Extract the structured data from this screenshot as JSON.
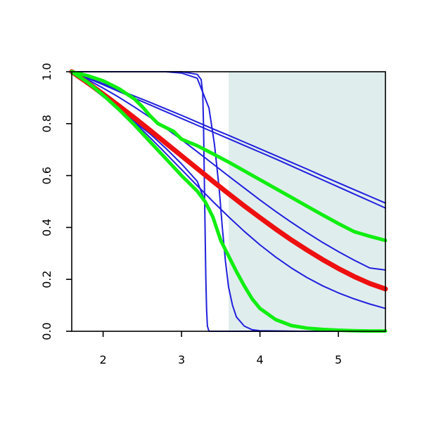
{
  "chart_data": {
    "type": "line",
    "title": "",
    "xlabel": "",
    "ylabel": "",
    "xlim": [
      1.6,
      5.6
    ],
    "ylim": [
      0,
      1
    ],
    "x_ticks": [
      {
        "value": 2,
        "label": "2"
      },
      {
        "value": 3,
        "label": "3"
      },
      {
        "value": 4,
        "label": "4"
      },
      {
        "value": 5,
        "label": "5"
      }
    ],
    "y_ticks": [
      {
        "value": 0.0,
        "label": "0.0"
      },
      {
        "value": 0.2,
        "label": "0.2"
      },
      {
        "value": 0.4,
        "label": "0.4"
      },
      {
        "value": 0.6,
        "label": "0.6"
      },
      {
        "value": 0.8,
        "label": "0.8"
      },
      {
        "value": 1.0,
        "label": "1.0"
      }
    ],
    "shaded_region": {
      "x_from": 3.6,
      "x_to": 5.6,
      "color": "#e0eded"
    },
    "grid": false,
    "series": [
      {
        "color": "#2020dd",
        "width": 2,
        "x": [
          1.6,
          1.8,
          2.0,
          2.2,
          2.4,
          2.6,
          2.8,
          3.0,
          3.2,
          3.4,
          3.6,
          3.8,
          4.0,
          4.2,
          4.4,
          4.6,
          4.8,
          5.0,
          5.2,
          5.4,
          5.6
        ],
        "y": [
          1.0,
          0.975,
          0.95,
          0.924,
          0.898,
          0.872,
          0.846,
          0.82,
          0.794,
          0.768,
          0.742,
          0.716,
          0.69,
          0.664,
          0.637,
          0.61,
          0.583,
          0.556,
          0.529,
          0.502,
          0.475
        ]
      },
      {
        "color": "#2020dd",
        "width": 2,
        "x": [
          1.6,
          1.8,
          2.0,
          2.2,
          2.4,
          2.6,
          2.8,
          3.0,
          3.2,
          3.4,
          3.6,
          3.8,
          4.0,
          4.2,
          4.4,
          4.6,
          4.8,
          5.0,
          5.2,
          5.4,
          5.6
        ],
        "y": [
          1.0,
          0.977,
          0.954,
          0.93,
          0.906,
          0.882,
          0.857,
          0.832,
          0.806,
          0.78,
          0.755,
          0.729,
          0.703,
          0.677,
          0.651,
          0.625,
          0.598,
          0.572,
          0.546,
          0.52,
          0.494
        ]
      },
      {
        "color": "#2020dd",
        "width": 2,
        "x": [
          1.6,
          1.8,
          2.0,
          2.2,
          2.4,
          2.6,
          2.8,
          3.0,
          3.2,
          3.4,
          3.6,
          3.8,
          4.0,
          4.2,
          4.4,
          4.6,
          4.8,
          5.0,
          5.2,
          5.4,
          5.6
        ],
        "y": [
          1.0,
          0.97,
          0.937,
          0.902,
          0.864,
          0.824,
          0.782,
          0.738,
          0.692,
          0.645,
          0.598,
          0.552,
          0.506,
          0.462,
          0.42,
          0.38,
          0.342,
          0.307,
          0.274,
          0.244,
          0.236
        ]
      },
      {
        "color": "#2020dd",
        "width": 2,
        "x": [
          1.6,
          1.8,
          2.0,
          2.2,
          2.4,
          2.6,
          2.8,
          3.0,
          3.2,
          3.4,
          3.6,
          3.8,
          4.0,
          4.2,
          4.4,
          4.6,
          4.8,
          5.0,
          5.2,
          5.4,
          5.6
        ],
        "y": [
          1.0,
          0.96,
          0.912,
          0.86,
          0.805,
          0.746,
          0.685,
          0.623,
          0.561,
          0.5,
          0.441,
          0.385,
          0.333,
          0.286,
          0.244,
          0.207,
          0.175,
          0.148,
          0.125,
          0.105,
          0.088
        ]
      },
      {
        "color": "#2020dd",
        "width": 2,
        "x": [
          1.6,
          1.8,
          2.0,
          2.2,
          2.4,
          2.6,
          2.8,
          3.0,
          3.2,
          3.35,
          3.42,
          3.48,
          3.52,
          3.56,
          3.6,
          3.65,
          3.7,
          3.8,
          3.9,
          4.0,
          4.5,
          5.0,
          5.6
        ],
        "y": [
          1.0,
          1.0,
          1.0,
          1.0,
          1.0,
          1.0,
          1.0,
          0.995,
          0.975,
          0.86,
          0.72,
          0.55,
          0.4,
          0.27,
          0.17,
          0.1,
          0.055,
          0.02,
          0.006,
          0.002,
          0.0,
          0.0,
          0.0
        ]
      },
      {
        "color": "#2020dd",
        "width": 2,
        "x": [
          1.6,
          2.0,
          2.5,
          3.0,
          3.2,
          3.25,
          3.27,
          3.28,
          3.29,
          3.3,
          3.31,
          3.32,
          3.33,
          3.35,
          3.4,
          4.0,
          5.0,
          5.6
        ],
        "y": [
          1.0,
          1.0,
          1.0,
          1.0,
          0.99,
          0.97,
          0.92,
          0.8,
          0.6,
          0.4,
          0.2,
          0.08,
          0.02,
          0.0,
          0.0,
          0.0,
          0.0,
          0.0
        ]
      },
      {
        "color": "#2020dd",
        "width": 2,
        "x": [
          1.6,
          1.8,
          2.0,
          2.2,
          2.4,
          2.6,
          2.8,
          3.0,
          3.2,
          3.3
        ],
        "y": [
          1.0,
          0.952,
          0.904,
          0.856,
          0.808,
          0.76,
          0.705,
          0.645,
          0.578,
          0.5
        ]
      },
      {
        "color": "#ee1010",
        "width": 7,
        "x": [
          1.6,
          1.8,
          2.0,
          2.2,
          2.4,
          2.6,
          2.8,
          3.0,
          3.2,
          3.4,
          3.6,
          3.8,
          4.0,
          4.2,
          4.4,
          4.6,
          4.8,
          5.0,
          5.2,
          5.4,
          5.6
        ],
        "y": [
          1.0,
          0.958,
          0.914,
          0.869,
          0.822,
          0.774,
          0.725,
          0.676,
          0.627,
          0.578,
          0.53,
          0.483,
          0.438,
          0.394,
          0.352,
          0.313,
          0.276,
          0.242,
          0.211,
          0.184,
          0.163
        ]
      },
      {
        "color": "#11ee11",
        "width": 5,
        "x": [
          1.6,
          1.8,
          2.0,
          2.2,
          2.4,
          2.5,
          2.6,
          2.7,
          2.8,
          2.9,
          3.0,
          3.2,
          3.4,
          3.6,
          3.8,
          4.0,
          4.2,
          4.4,
          4.6,
          4.8,
          5.0,
          5.2,
          5.4,
          5.6
        ],
        "y": [
          1.0,
          0.985,
          0.965,
          0.935,
          0.895,
          0.865,
          0.83,
          0.8,
          0.785,
          0.77,
          0.74,
          0.715,
          0.684,
          0.652,
          0.618,
          0.584,
          0.55,
          0.516,
          0.482,
          0.448,
          0.415,
          0.384,
          0.366,
          0.35
        ]
      },
      {
        "color": "#11ee11",
        "width": 5,
        "x": [
          1.6,
          1.8,
          2.0,
          2.2,
          2.4,
          2.6,
          2.8,
          3.0,
          3.2,
          3.3,
          3.4,
          3.5,
          3.6,
          3.7,
          3.8,
          3.9,
          4.0,
          4.2,
          4.4,
          4.6,
          4.8,
          5.0,
          5.2,
          5.4,
          5.6
        ],
        "y": [
          1.0,
          0.96,
          0.91,
          0.855,
          0.795,
          0.73,
          0.665,
          0.6,
          0.54,
          0.5,
          0.44,
          0.35,
          0.29,
          0.23,
          0.175,
          0.125,
          0.088,
          0.045,
          0.022,
          0.012,
          0.007,
          0.004,
          0.002,
          0.001,
          0.001
        ]
      }
    ]
  }
}
